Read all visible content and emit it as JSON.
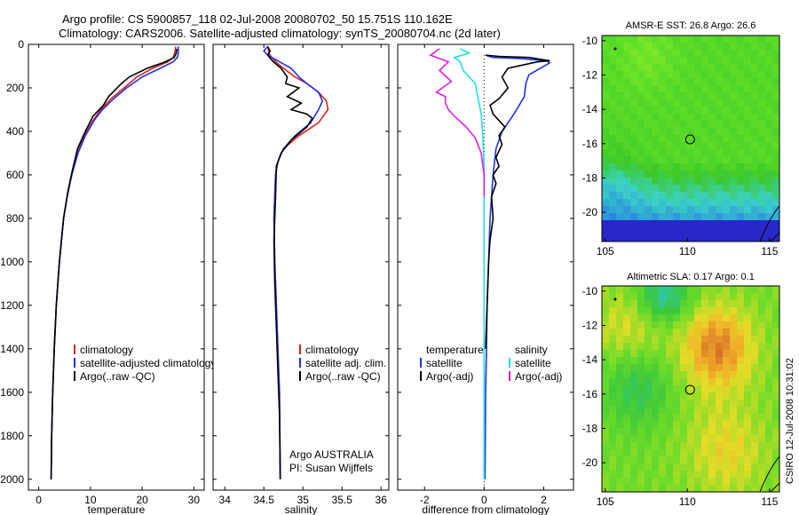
{
  "header": {
    "line1": "Argo profile: CS 5900857_118 02-Jul-2008 20080702_50 15.751S 110.162E",
    "line2": "Climatology: CARS2006. Satellite-adjusted climatology: synTS_20080704.nc (2d later)"
  },
  "side_stamp": "CSIRO 12-Jul-2008 10:31:02",
  "chart_data": [
    {
      "id": "temperature",
      "type": "line",
      "xlabel": "temperature",
      "ylabel": "",
      "xlim": [
        -2,
        32
      ],
      "ylim": [
        2050,
        0
      ],
      "xticks": [
        0,
        10,
        20,
        30
      ],
      "yticks": [
        0,
        200,
        400,
        600,
        800,
        1000,
        1200,
        1400,
        1600,
        1800,
        2000
      ],
      "legend": [
        "climatology",
        "satellite-adjusted climatology",
        "Argo(..raw -QC)"
      ],
      "legend_colors": [
        "#e02020",
        "#2030e0",
        "#000000"
      ],
      "series": [
        {
          "name": "climatology",
          "color": "#e02020",
          "x": [
            26.5,
            26.3,
            26.0,
            25.0,
            22.0,
            19.0,
            16.5,
            14.0,
            12.0,
            10.5,
            8.8,
            7.5,
            6.3,
            5.5,
            4.8,
            4.0,
            3.4,
            3.0,
            2.7,
            2.5,
            2.4
          ],
          "y": [
            10,
            40,
            60,
            80,
            110,
            150,
            200,
            250,
            300,
            350,
            420,
            500,
            600,
            700,
            800,
            1000,
            1200,
            1400,
            1600,
            1800,
            2000
          ]
        },
        {
          "name": "satellite",
          "color": "#2030e0",
          "x": [
            27.0,
            27.0,
            26.8,
            26.0,
            23.5,
            20.0,
            17.0,
            14.5,
            12.3,
            10.7,
            9.0,
            7.6,
            6.4,
            5.5,
            4.8,
            4.0,
            3.4,
            3.0,
            2.7,
            2.5,
            2.4
          ],
          "y": [
            10,
            40,
            60,
            80,
            110,
            150,
            200,
            250,
            300,
            350,
            420,
            500,
            600,
            700,
            800,
            1000,
            1200,
            1400,
            1600,
            1800,
            2000
          ]
        },
        {
          "name": "argo",
          "color": "#000000",
          "x": [
            26.7,
            26.6,
            26.2,
            24.5,
            21.0,
            17.5,
            16.0,
            13.5,
            12.5,
            10.5,
            9.0,
            7.5,
            6.5,
            5.6,
            4.8,
            4.0,
            3.4,
            3.0,
            2.7,
            2.5,
            2.4
          ],
          "y": [
            20,
            40,
            60,
            80,
            110,
            150,
            180,
            240,
            280,
            330,
            400,
            480,
            580,
            680,
            800,
            1000,
            1200,
            1400,
            1600,
            1800,
            2000
          ]
        }
      ]
    },
    {
      "id": "salinity",
      "type": "line",
      "xlabel": "salinity",
      "ylabel": "",
      "xlim": [
        33.85,
        36.1
      ],
      "ylim": [
        2050,
        0
      ],
      "xticks": [
        34,
        34.5,
        35,
        35.5,
        36
      ],
      "legend": [
        "climatology",
        "satellite adj. clim.",
        "Argo(..raw -QC)"
      ],
      "legend_colors": [
        "#e02020",
        "#2030e0",
        "#000000"
      ],
      "annotations": [
        "Argo AUSTRALIA",
        "PI: Susan Wijffels"
      ],
      "series": [
        {
          "name": "climatology",
          "color": "#e02020",
          "x": [
            34.55,
            34.56,
            34.58,
            34.65,
            34.75,
            34.9,
            35.05,
            35.2,
            35.3,
            35.32,
            35.2,
            34.95,
            34.75,
            34.68,
            34.65,
            34.63,
            34.64,
            34.66,
            34.68,
            34.7,
            34.71
          ],
          "y": [
            10,
            30,
            50,
            80,
            110,
            150,
            180,
            220,
            260,
            300,
            360,
            420,
            480,
            540,
            600,
            800,
            1000,
            1200,
            1400,
            1600,
            2000
          ]
        },
        {
          "name": "satellite",
          "color": "#2030e0",
          "x": [
            34.55,
            34.5,
            34.55,
            34.7,
            34.85,
            34.95,
            35.05,
            35.2,
            35.25,
            35.2,
            35.1,
            34.9,
            34.75,
            34.68,
            34.65,
            34.63,
            34.64,
            34.66,
            34.68,
            34.7,
            34.71
          ],
          "y": [
            10,
            30,
            50,
            80,
            110,
            150,
            180,
            220,
            260,
            300,
            360,
            420,
            480,
            540,
            600,
            800,
            1000,
            1200,
            1400,
            1600,
            2000
          ]
        },
        {
          "name": "argo",
          "color": "#000000",
          "x": [
            34.55,
            34.58,
            34.55,
            34.62,
            34.72,
            34.8,
            34.78,
            34.95,
            34.8,
            34.98,
            34.85,
            35.05,
            35.12,
            35.05,
            34.85,
            34.72,
            34.66,
            34.65,
            34.63,
            34.64,
            34.66,
            34.68,
            34.7,
            34.71
          ],
          "y": [
            10,
            30,
            50,
            80,
            110,
            150,
            180,
            200,
            240,
            270,
            300,
            320,
            340,
            380,
            440,
            500,
            560,
            700,
            900,
            1100,
            1300,
            1500,
            1700,
            2000
          ]
        }
      ]
    },
    {
      "id": "difference",
      "type": "line",
      "xlabel": "difference from climatology",
      "ylabel": "",
      "xlim": [
        -2.9,
        3.0
      ],
      "ylim": [
        2050,
        0
      ],
      "xticks": [
        -2,
        0,
        2
      ],
      "legend_headers": [
        "temperature",
        "salinity"
      ],
      "legend": [
        "satellite",
        "Argo(-adj)",
        "satellite",
        "Argo(-adj)"
      ],
      "legend_colors": [
        "#2030e0",
        "#000000",
        "#20e0e0",
        "#e020e0"
      ],
      "series": [
        {
          "name": "temperature satellite",
          "color": "#2030e0",
          "x": [
            0.05,
            0.3,
            1.2,
            2.1,
            2.2,
            1.5,
            1.4,
            1.35,
            1.0,
            0.6,
            0.4,
            0.3,
            0.2,
            0.15,
            0.1,
            0.08,
            0.05,
            0.04,
            0.03
          ],
          "y": [
            50,
            60,
            65,
            75,
            85,
            140,
            180,
            240,
            320,
            400,
            480,
            600,
            800,
            1000,
            1200,
            1400,
            1600,
            1800,
            2000
          ]
        },
        {
          "name": "temperature argo",
          "color": "#000000",
          "x": [
            0.05,
            0.5,
            1.5,
            2.2,
            1.8,
            0.8,
            0.6,
            0.8,
            0.5,
            0.2,
            0.3,
            0.7,
            0.5,
            0.6,
            0.4,
            0.5,
            0.3,
            0.4,
            0.25,
            0.3,
            0.2,
            0.15,
            0.1,
            0.05
          ],
          "y": [
            50,
            55,
            60,
            75,
            80,
            110,
            150,
            200,
            250,
            280,
            320,
            380,
            420,
            460,
            520,
            560,
            600,
            640,
            700,
            800,
            900,
            1000,
            1200,
            1400
          ]
        },
        {
          "name": "salinity satellite",
          "color": "#20e0e0",
          "x": [
            -0.8,
            -0.5,
            -1.0,
            -0.8,
            -0.7,
            -0.3,
            -0.2,
            -0.1,
            -0.05,
            -0.02,
            0.0,
            0.0,
            0.0,
            0.0,
            0.0
          ],
          "y": [
            20,
            40,
            60,
            80,
            120,
            180,
            250,
            320,
            400,
            500,
            600,
            700,
            800,
            1000,
            2000
          ]
        },
        {
          "name": "salinity argo",
          "color": "#e020e0",
          "x": [
            -1.5,
            -1.8,
            -1.2,
            -1.5,
            -1.1,
            -1.6,
            -1.3,
            -1.3,
            -1.2,
            -1.0,
            -0.6,
            -0.3,
            -0.1,
            0.0,
            0.0
          ],
          "y": [
            20,
            50,
            80,
            120,
            170,
            220,
            240,
            270,
            300,
            330,
            380,
            430,
            500,
            600,
            700
          ]
        }
      ]
    },
    {
      "id": "sst-map",
      "type": "heatmap",
      "title": "AMSR-E SST: 26.8 Argo: 26.6",
      "xlim": [
        104.8,
        115.6
      ],
      "ylim": [
        -21.7,
        -9.7
      ],
      "xticks": [
        105,
        110,
        115
      ],
      "yticks": [
        -10,
        -12,
        -14,
        -16,
        -18,
        -20
      ],
      "marker": {
        "lon": 110.162,
        "lat": -15.751
      }
    },
    {
      "id": "sla-map",
      "type": "heatmap",
      "title": "Altimetric SLA: 0.17 Argo: 0.1",
      "xlim": [
        104.8,
        115.6
      ],
      "ylim": [
        -21.7,
        -9.7
      ],
      "xticks": [
        105,
        110,
        115
      ],
      "yticks": [
        -10,
        -12,
        -14,
        -16,
        -18,
        -20
      ],
      "marker": {
        "lon": 110.162,
        "lat": -15.751
      }
    }
  ]
}
